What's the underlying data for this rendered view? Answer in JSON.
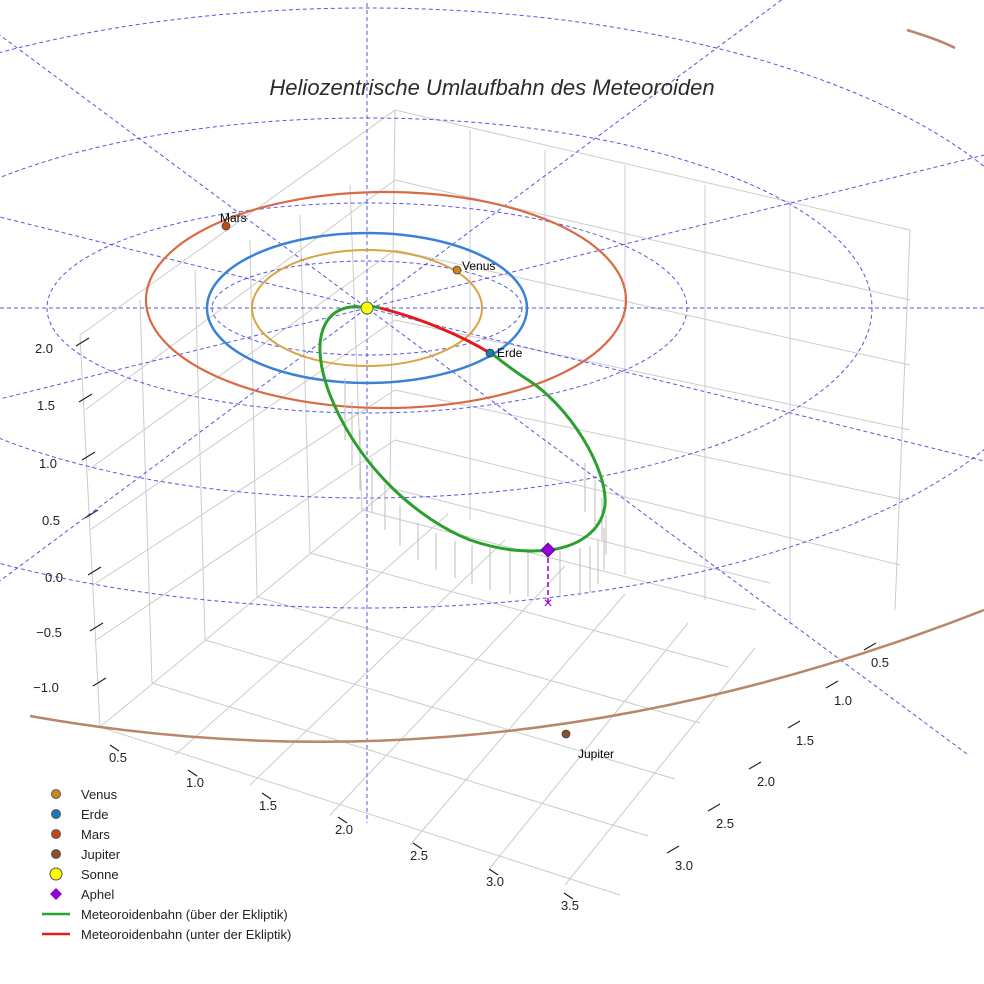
{
  "chart_data": {
    "type": "3d-line",
    "title": "Heliozentrische Umlaufbahn des Meteoroiden",
    "colors": {
      "Venus": "#c8861e",
      "Erde": "#1f77b4",
      "Mars": "#c14a1d",
      "Jupiter": "#8a4e2c",
      "Sonne": "#ffff00",
      "Aphel": "#9400d3",
      "above": "#2ca02c",
      "below": "#e31a1c",
      "venus_orbit": "#d9a441",
      "earth_orbit": "#3b82d6",
      "mars_orbit": "#d96a45",
      "jupiter_orbit": "#b8866a",
      "ecliptic_grid": "#3a3adb",
      "grid": "#cccccc"
    },
    "axes": {
      "x_ticks": [
        "0.5",
        "1.0",
        "1.5",
        "2.0",
        "2.5",
        "3.0",
        "3.5"
      ],
      "y_ticks": [
        "0.5",
        "1.0",
        "1.5",
        "2.0",
        "2.5",
        "3.0"
      ],
      "z_ticks": [
        "2.0",
        "1.5",
        "1.0",
        "0.5",
        "0.0",
        "−0.5",
        "−1.0"
      ]
    },
    "planets": [
      {
        "name": "Venus",
        "label": "Venus",
        "orbit_radius_au": 0.72
      },
      {
        "name": "Erde",
        "label": "Erde",
        "orbit_radius_au": 1.0
      },
      {
        "name": "Mars",
        "label": "Mars",
        "orbit_radius_au": 1.52
      },
      {
        "name": "Jupiter",
        "label": "Jupiter",
        "orbit_radius_au": 5.2
      }
    ],
    "aphel_mark": "×",
    "legend": [
      {
        "label": "Venus",
        "marker": "circle",
        "color": "#c8861e"
      },
      {
        "label": "Erde",
        "marker": "circle",
        "color": "#1f77b4"
      },
      {
        "label": "Mars",
        "marker": "circle",
        "color": "#c14a1d"
      },
      {
        "label": "Jupiter",
        "marker": "circle",
        "color": "#8a4e2c"
      },
      {
        "label": "Sonne",
        "marker": "big-circle",
        "color": "#ffff00"
      },
      {
        "label": "Aphel",
        "marker": "diamond",
        "color": "#9400d3"
      },
      {
        "label": "Meteoroidenbahn (über der Ekliptik)",
        "marker": "line",
        "color": "#2ca02c"
      },
      {
        "label": "Meteoroidenbahn (unter der Ekliptik)",
        "marker": "line",
        "color": "#e31a1c"
      }
    ],
    "legend_placement": "bottom-left",
    "grid": true
  }
}
